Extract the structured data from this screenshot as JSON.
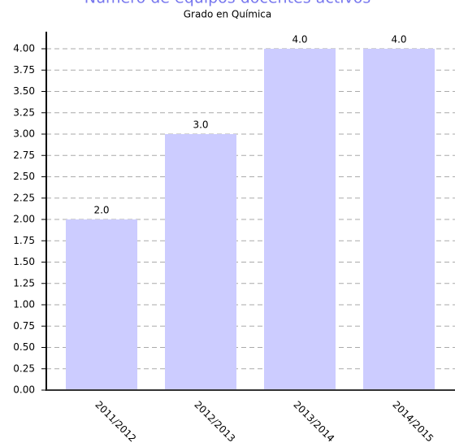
{
  "chart_data": {
    "type": "bar",
    "title": "Número de equipos docentes activos",
    "subtitle": "Grado en Química",
    "categories": [
      "2011/2012",
      "2012/2013",
      "2013/2014",
      "2014/2015"
    ],
    "values": [
      2,
      3,
      4,
      4
    ],
    "value_labels": [
      "2.0",
      "3.0",
      "4.0",
      "4.0"
    ],
    "color": "#ccccff",
    "ylim": [
      0,
      4.2
    ],
    "yticks": [
      {
        "value": 0,
        "label": "0.00"
      },
      {
        "value": 0.25,
        "label": "0.25"
      },
      {
        "value": 0.5,
        "label": "0.50"
      },
      {
        "value": 0.75,
        "label": "0.75"
      },
      {
        "value": 1,
        "label": "1.00"
      },
      {
        "value": 1.25,
        "label": "1.25"
      },
      {
        "value": 1.5,
        "label": "1.50"
      },
      {
        "value": 1.75,
        "label": "1.75"
      },
      {
        "value": 2,
        "label": "2.00"
      },
      {
        "value": 2.25,
        "label": "2.25"
      },
      {
        "value": 2.5,
        "label": "2.50"
      },
      {
        "value": 2.75,
        "label": "2.75"
      },
      {
        "value": 3,
        "label": "3.00"
      },
      {
        "value": 3.25,
        "label": "3.25"
      },
      {
        "value": 3.5,
        "label": "3.50"
      },
      {
        "value": 3.75,
        "label": "3.75"
      },
      {
        "value": 4,
        "label": "4.00"
      }
    ],
    "grid": true
  }
}
